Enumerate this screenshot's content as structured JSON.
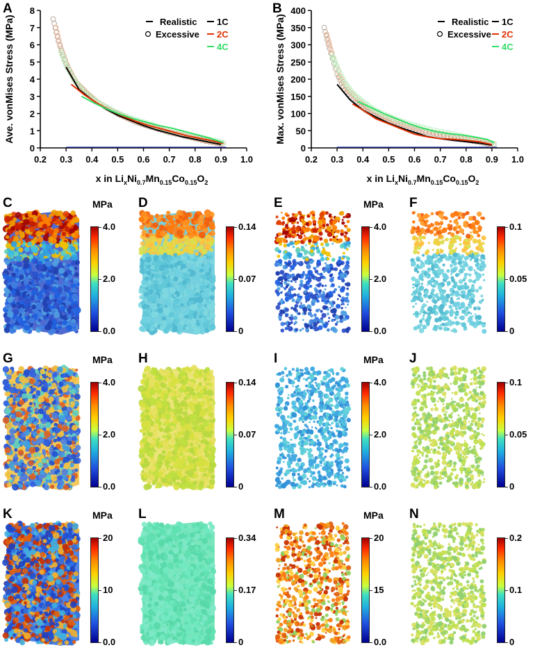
{
  "chart_data": [
    {
      "type": "line",
      "panel": "A",
      "xlabel_parts": [
        "x in Li",
        "x",
        "Ni",
        "0.7",
        "Mn",
        "0.15",
        "Co",
        "0.15",
        "O",
        "2"
      ],
      "ylabel": "Ave. vonMises Stress (MPa)",
      "xlim": [
        0.2,
        1.0
      ],
      "ylim": [
        0,
        8
      ],
      "xticks": [
        "0.2",
        "0.3",
        "0.4",
        "0.5",
        "0.6",
        "0.7",
        "0.8",
        "0.9",
        "1.0"
      ],
      "yticks": [
        "0",
        "1",
        "2",
        "3",
        "4",
        "5",
        "6",
        "7",
        "8"
      ],
      "legend": [
        {
          "label": "Realistic",
          "marker": "line"
        },
        {
          "label": "Excessive",
          "marker": "circle"
        },
        {
          "label": "1C",
          "marker": "line"
        },
        {
          "label": "2C",
          "marker": "line"
        },
        {
          "label": "4C",
          "marker": "line"
        }
      ],
      "series": [
        {
          "name": "1C",
          "style": "Realistic",
          "color": "#000000",
          "x": [
            0.3,
            0.35,
            0.4,
            0.45,
            0.5,
            0.55,
            0.6,
            0.65,
            0.7,
            0.75,
            0.8,
            0.85,
            0.9
          ],
          "y": [
            4.7,
            3.4,
            2.8,
            2.3,
            1.9,
            1.6,
            1.3,
            1.05,
            0.85,
            0.65,
            0.5,
            0.35,
            0.2
          ]
        },
        {
          "name": "2C",
          "style": "Realistic",
          "color": "#e03000",
          "x": [
            0.32,
            0.37,
            0.42,
            0.47,
            0.52,
            0.57,
            0.62,
            0.67,
            0.72,
            0.77,
            0.82,
            0.87,
            0.91
          ],
          "y": [
            3.7,
            3.1,
            2.6,
            2.2,
            1.85,
            1.55,
            1.3,
            1.1,
            0.9,
            0.7,
            0.55,
            0.4,
            0.25
          ]
        },
        {
          "name": "4C",
          "style": "Realistic",
          "color": "#33dd66",
          "x": [
            0.36,
            0.41,
            0.46,
            0.51,
            0.56,
            0.61,
            0.66,
            0.71,
            0.76,
            0.81,
            0.86,
            0.91
          ],
          "y": [
            3.0,
            2.6,
            2.25,
            1.95,
            1.7,
            1.5,
            1.3,
            1.15,
            0.95,
            0.75,
            0.55,
            0.3
          ]
        },
        {
          "name": "1C",
          "style": "Excessive",
          "color": "#000000",
          "x": [
            0.25,
            0.27,
            0.3,
            0.33,
            0.37,
            0.41,
            0.46,
            0.51,
            0.57,
            0.63,
            0.7,
            0.77,
            0.84,
            0.91
          ],
          "y": [
            7.5,
            6.2,
            4.9,
            4.0,
            3.3,
            2.8,
            2.3,
            1.9,
            1.5,
            1.2,
            0.9,
            0.65,
            0.4,
            0.2
          ]
        },
        {
          "name": "2C",
          "style": "Excessive",
          "color": "#e03000",
          "x": [
            0.26,
            0.28,
            0.31,
            0.34,
            0.38,
            0.42,
            0.47,
            0.52,
            0.58,
            0.64,
            0.71,
            0.78,
            0.85,
            0.92
          ],
          "y": [
            7.0,
            5.8,
            4.6,
            3.8,
            3.2,
            2.7,
            2.25,
            1.85,
            1.5,
            1.2,
            0.9,
            0.65,
            0.4,
            0.2
          ]
        },
        {
          "name": "4C",
          "style": "Excessive",
          "color": "#33dd66",
          "x": [
            0.28,
            0.3,
            0.33,
            0.36,
            0.4,
            0.44,
            0.49,
            0.54,
            0.6,
            0.66,
            0.73,
            0.8,
            0.87,
            0.92
          ],
          "y": [
            5.6,
            4.8,
            4.0,
            3.4,
            2.9,
            2.5,
            2.1,
            1.8,
            1.5,
            1.2,
            0.95,
            0.7,
            0.45,
            0.25
          ]
        }
      ]
    },
    {
      "type": "line",
      "panel": "B",
      "xlabel_parts": [
        "x in Li",
        "x",
        "Ni",
        "0.7",
        "Mn",
        "0.15",
        "Co",
        "0.15",
        "O",
        "2"
      ],
      "ylabel": "Max. vonMises Stress (MPa)",
      "xlim": [
        0.2,
        1.0
      ],
      "ylim": [
        0,
        400
      ],
      "xticks": [
        "0.2",
        "0.3",
        "0.4",
        "0.5",
        "0.6",
        "0.7",
        "0.8",
        "0.9",
        "1.0"
      ],
      "yticks": [
        "0",
        "50",
        "100",
        "150",
        "200",
        "250",
        "300",
        "350",
        "400"
      ],
      "legend": [
        {
          "label": "Realistic",
          "marker": "line"
        },
        {
          "label": "Excessive",
          "marker": "circle"
        },
        {
          "label": "1C",
          "marker": "line"
        },
        {
          "label": "2C",
          "marker": "line"
        },
        {
          "label": "4C",
          "marker": "line"
        }
      ],
      "series": [
        {
          "name": "1C",
          "style": "Realistic",
          "color": "#000000",
          "x": [
            0.3,
            0.35,
            0.4,
            0.45,
            0.5,
            0.55,
            0.6,
            0.65,
            0.7,
            0.75,
            0.8,
            0.85,
            0.9
          ],
          "y": [
            185,
            140,
            110,
            90,
            72,
            58,
            45,
            33,
            27,
            22,
            18,
            14,
            8
          ]
        },
        {
          "name": "2C",
          "style": "Realistic",
          "color": "#e03000",
          "x": [
            0.36,
            0.4,
            0.45,
            0.5,
            0.55,
            0.6,
            0.65,
            0.7,
            0.75,
            0.8,
            0.85,
            0.9
          ],
          "y": [
            128,
            110,
            85,
            70,
            55,
            40,
            32,
            27,
            25,
            22,
            18,
            10
          ]
        },
        {
          "name": "4C",
          "style": "Realistic",
          "color": "#33dd66",
          "x": [
            0.38,
            0.43,
            0.48,
            0.53,
            0.58,
            0.63,
            0.68,
            0.73,
            0.78,
            0.83,
            0.88,
            0.91
          ],
          "y": [
            135,
            118,
            100,
            85,
            70,
            58,
            48,
            42,
            38,
            32,
            25,
            15
          ]
        },
        {
          "name": "1C",
          "style": "Excessive",
          "color": "#000000",
          "x": [
            0.25,
            0.27,
            0.3,
            0.33,
            0.37,
            0.41,
            0.46,
            0.51,
            0.57,
            0.63,
            0.7,
            0.77,
            0.84,
            0.91
          ],
          "y": [
            350,
            290,
            215,
            170,
            135,
            110,
            90,
            75,
            60,
            48,
            38,
            28,
            18,
            8
          ]
        },
        {
          "name": "2C",
          "style": "Excessive",
          "color": "#e03000",
          "x": [
            0.26,
            0.28,
            0.31,
            0.34,
            0.38,
            0.42,
            0.47,
            0.52,
            0.58,
            0.64,
            0.71,
            0.78,
            0.85,
            0.92
          ],
          "y": [
            330,
            275,
            210,
            170,
            140,
            115,
            95,
            78,
            63,
            50,
            40,
            30,
            20,
            8
          ]
        },
        {
          "name": "4C",
          "style": "Excessive",
          "color": "#33dd66",
          "x": [
            0.28,
            0.3,
            0.33,
            0.36,
            0.4,
            0.44,
            0.49,
            0.54,
            0.6,
            0.66,
            0.73,
            0.8,
            0.87,
            0.92
          ],
          "y": [
            270,
            235,
            190,
            160,
            135,
            113,
            95,
            80,
            66,
            54,
            43,
            32,
            20,
            10
          ]
        }
      ]
    },
    {
      "type": "heatmap",
      "panels": [
        {
          "letter": "C",
          "unit": "MPa",
          "cbar": [
            "4.0",
            "2.0",
            "0.0"
          ],
          "style": "dense",
          "gradient": "top-hot"
        },
        {
          "letter": "D",
          "unit": "",
          "cbar": [
            "0.14",
            "0.07",
            "0"
          ],
          "style": "dense",
          "gradient": "top-orange"
        },
        {
          "letter": "E",
          "unit": "MPa",
          "cbar": [
            "4.0",
            "2.0",
            "0.0"
          ],
          "style": "sparse",
          "gradient": "top-hot"
        },
        {
          "letter": "F",
          "unit": "",
          "cbar": [
            "0.1",
            "0.05",
            "0"
          ],
          "style": "sparse",
          "gradient": "top-orange"
        },
        {
          "letter": "G",
          "unit": "MPa",
          "cbar": [
            "4.0",
            "2.0",
            "0.0"
          ],
          "style": "dense",
          "gradient": "mixed-blue"
        },
        {
          "letter": "H",
          "unit": "",
          "cbar": [
            "0.14",
            "0.07",
            "0"
          ],
          "style": "dense",
          "gradient": "uniform-yellow"
        },
        {
          "letter": "I",
          "unit": "MPa",
          "cbar": [
            "4.0",
            "2.0",
            "0.0"
          ],
          "style": "sparse",
          "gradient": "uniform-cyan"
        },
        {
          "letter": "J",
          "unit": "",
          "cbar": [
            "0.1",
            "0.05",
            "0"
          ],
          "style": "sparse",
          "gradient": "uniform-yellowgreen"
        },
        {
          "letter": "K",
          "unit": "MPa",
          "cbar": [
            "20",
            "10",
            "0.0"
          ],
          "style": "dense",
          "gradient": "mixed-hot"
        },
        {
          "letter": "L",
          "unit": "",
          "cbar": [
            "0.34",
            "0.17",
            "0"
          ],
          "style": "dense",
          "gradient": "uniform-aqua"
        },
        {
          "letter": "M",
          "unit": "MPa",
          "cbar": [
            "20",
            "15",
            "0.0"
          ],
          "style": "sparse",
          "gradient": "mixed-orange"
        },
        {
          "letter": "N",
          "unit": "",
          "cbar": [
            "0.2",
            "0.1",
            "0"
          ],
          "style": "sparse",
          "gradient": "uniform-yellowgreen"
        }
      ]
    }
  ]
}
